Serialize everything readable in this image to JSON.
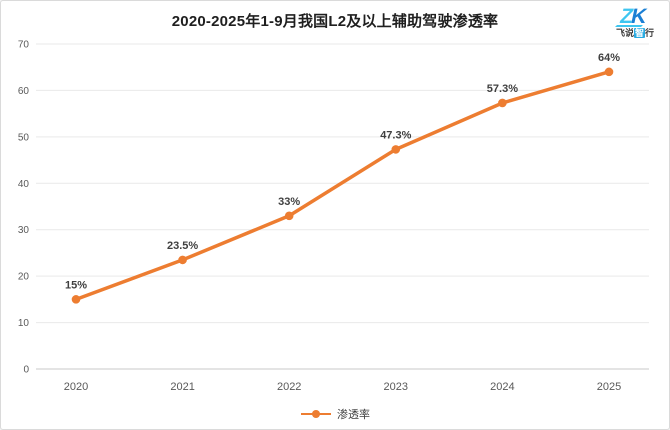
{
  "header": {
    "title": "2020-2025年1-9月我国L2及以上辅助驾驶渗透率"
  },
  "logo": {
    "mark_letters": "ZK",
    "text_pre": "飞说",
    "text_highlight": "智",
    "text_post": "行",
    "color_light": "#3ec6f0",
    "color_dark": "#1b7fd4"
  },
  "chart_data": {
    "type": "line",
    "title": "2020-2025年1-9月我国L2及以上辅助驾驶渗透率",
    "categories": [
      "2020",
      "2021",
      "2022",
      "2023",
      "2024",
      "2025"
    ],
    "series": [
      {
        "name": "渗透率",
        "values": [
          15,
          23.5,
          33,
          47.3,
          57.3,
          64
        ],
        "labels": [
          "15%",
          "23.5%",
          "33%",
          "47.3%",
          "57.3%",
          "64%"
        ],
        "color": "#ED7D31"
      }
    ],
    "xlabel": "",
    "ylabel": "",
    "ylim": [
      0,
      70
    ],
    "yticks": [
      0,
      10,
      20,
      30,
      40,
      50,
      60,
      70
    ],
    "grid": true,
    "gridline_color": "#e9e9e9",
    "axis_line_color": "#c9c9c9",
    "tick_label_color": "#595959",
    "data_label_color": "#3f3f3f",
    "legend_position": "bottom"
  }
}
